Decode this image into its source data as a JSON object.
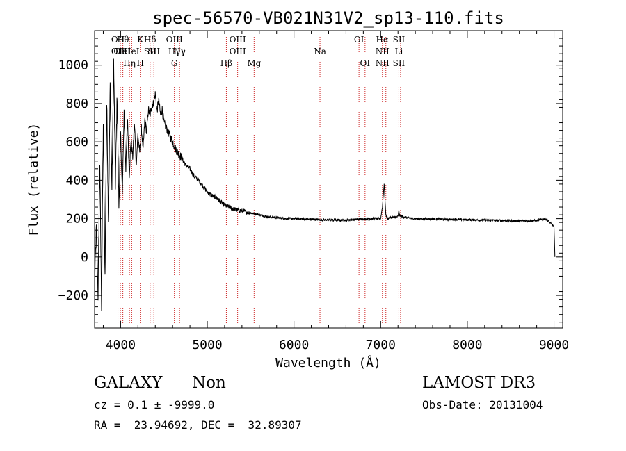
{
  "chart_data": {
    "type": "line",
    "title": "spec-56570-VB021N31V2_sp13-110.fits",
    "xlabel": "Wavelength (Å)",
    "ylabel": "Flux (relative)",
    "xlim": [
      3700,
      9100
    ],
    "ylim": [
      -370,
      1180
    ],
    "xticks": [
      4000,
      5000,
      6000,
      7000,
      8000,
      9000
    ],
    "yticks": [
      -200,
      0,
      200,
      400,
      600,
      800,
      1000
    ],
    "line_color": "#000000",
    "marker_color": "#cc2222",
    "spectrum": {
      "x": [
        3700,
        3720,
        3740,
        3760,
        3780,
        3800,
        3820,
        3840,
        3860,
        3880,
        3900,
        3920,
        3940,
        3960,
        3980,
        4000,
        4020,
        4040,
        4060,
        4080,
        4100,
        4120,
        4140,
        4160,
        4180,
        4200,
        4220,
        4240,
        4260,
        4280,
        4300,
        4320,
        4340,
        4360,
        4380,
        4400,
        4420,
        4440,
        4460,
        4480,
        4500,
        4550,
        4600,
        4650,
        4700,
        4750,
        4800,
        4850,
        4900,
        4950,
        5000,
        5050,
        5100,
        5150,
        5200,
        5250,
        5300,
        5350,
        5400,
        5450,
        5500,
        5600,
        5700,
        5800,
        5900,
        6000,
        6100,
        6200,
        6300,
        6400,
        6500,
        6600,
        6700,
        6800,
        6900,
        7000,
        7020,
        7040,
        7050,
        7060,
        7080,
        7100,
        7200,
        7210,
        7220,
        7300,
        7400,
        7600,
        7800,
        8000,
        8200,
        8400,
        8600,
        8800,
        8900,
        8950,
        9000,
        9010
      ],
      "y": [
        -150,
        150,
        -200,
        500,
        -250,
        700,
        -100,
        800,
        200,
        900,
        350,
        1020,
        380,
        850,
        260,
        650,
        320,
        760,
        460,
        720,
        430,
        610,
        520,
        700,
        480,
        640,
        540,
        670,
        560,
        720,
        650,
        770,
        740,
        790,
        800,
        850,
        760,
        820,
        740,
        770,
        700,
        650,
        600,
        550,
        520,
        480,
        460,
        420,
        400,
        370,
        340,
        320,
        310,
        290,
        270,
        260,
        250,
        245,
        240,
        235,
        230,
        220,
        210,
        205,
        200,
        200,
        198,
        196,
        194,
        193,
        192,
        192,
        195,
        198,
        200,
        200,
        260,
        380,
        300,
        220,
        200,
        205,
        210,
        240,
        215,
        205,
        200,
        198,
        196,
        194,
        192,
        190,
        188,
        190,
        200,
        180,
        160,
        0
      ]
    },
    "lines": [
      {
        "w": 3969,
        "labels": [
          "OII",
          "OII"
        ]
      },
      {
        "w": 3997,
        "labels": [
          "",
          "OII"
        ]
      },
      {
        "w": 4026,
        "labels": [
          "Hθ",
          "HeI"
        ]
      },
      {
        "w": 4102,
        "labels": [
          "",
          "",
          "Hη"
        ]
      },
      {
        "w": 4128,
        "labels": [
          "",
          "HeI"
        ]
      },
      {
        "w": 4227,
        "labels": [
          "K",
          "",
          "H"
        ]
      },
      {
        "w": 4340,
        "labels": [
          "Hδ",
          "SII"
        ]
      },
      {
        "w": 4384,
        "labels": [
          "",
          "SII"
        ]
      },
      {
        "w": 4620,
        "labels": [
          "OIII",
          "Hγ",
          "G"
        ]
      },
      {
        "w": 4680,
        "labels": [
          "",
          "Hγ"
        ]
      },
      {
        "w": 5220,
        "labels": [
          "",
          "",
          "Hβ"
        ]
      },
      {
        "w": 5350,
        "labels": [
          "OIII",
          "OIII"
        ]
      },
      {
        "w": 5540,
        "labels": [
          "",
          "",
          "Mg"
        ]
      },
      {
        "w": 6300,
        "labels": [
          "",
          "Na"
        ]
      },
      {
        "w": 6750,
        "labels": [
          "OI"
        ]
      },
      {
        "w": 6820,
        "labels": [
          "",
          "",
          "OI"
        ]
      },
      {
        "w": 7020,
        "labels": [
          "Hα",
          "NII",
          "NII"
        ]
      },
      {
        "w": 7060,
        "labels": [
          "",
          "",
          ""
        ]
      },
      {
        "w": 7210,
        "labels": [
          "SII",
          "Li",
          "SII"
        ]
      },
      {
        "w": 7230,
        "labels": [
          "",
          "",
          ""
        ]
      }
    ]
  },
  "info": {
    "object_class": "GALAXY",
    "subclass": "Non",
    "survey": "LAMOST DR3",
    "cz_line": "cz = 0.1 ± -9999.0",
    "obs_date": "Obs-Date: 20131004",
    "coords": "RA =  23.94692, DEC =  32.89307"
  }
}
